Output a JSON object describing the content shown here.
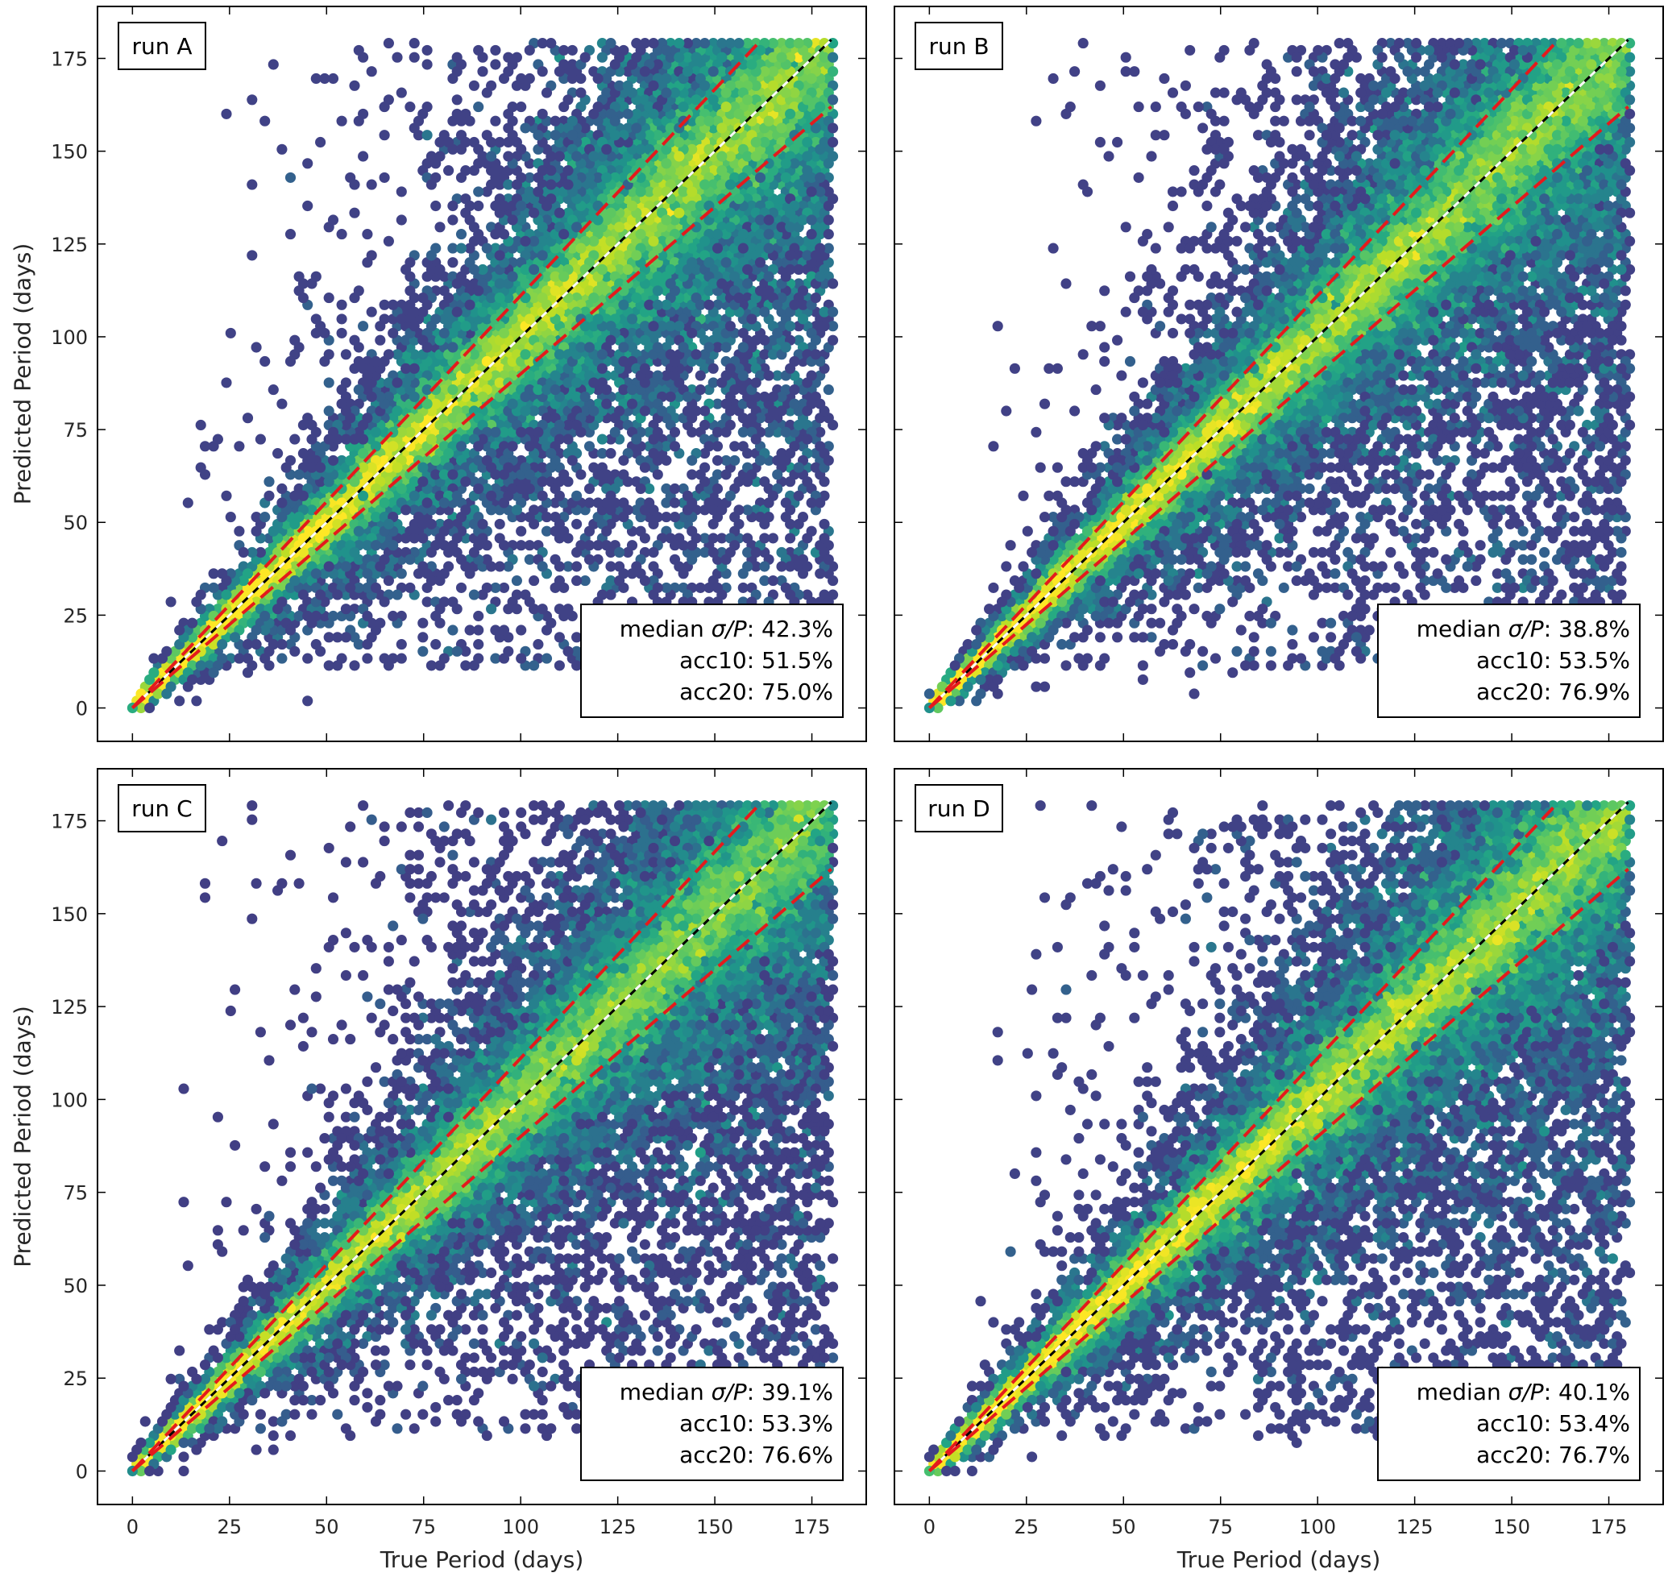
{
  "chart_data": [
    {
      "type": "hexbin",
      "panel_label": "run A",
      "xlabel": "",
      "ylabel": "Predicted Period (days)",
      "xlim": [
        -9,
        189
      ],
      "ylim": [
        -9,
        189
      ],
      "xticks": [
        0,
        25,
        50,
        75,
        100,
        125,
        150,
        175
      ],
      "yticks": [
        0,
        25,
        50,
        75,
        100,
        125,
        150,
        175
      ],
      "x_tick_labels_visible": false,
      "y_tick_labels_visible": true,
      "identity_line": {
        "x": [
          0,
          180
        ],
        "y": [
          0,
          180
        ],
        "style": "black/white dashed"
      },
      "band_lines": [
        {
          "name": "upper",
          "x": [
            0,
            162
          ],
          "y": [
            0,
            180
          ],
          "color": "#e41a1c"
        },
        {
          "name": "lower",
          "x": [
            0,
            180
          ],
          "y": [
            0,
            162
          ],
          "color": "#e41a1c"
        }
      ],
      "stats": {
        "line1_prefix": "median ",
        "line1_symbol": "σ/P",
        "line1_value": ": 42.3%",
        "line2": "acc10: 51.5%",
        "line3": "acc20: 75.0%"
      },
      "colormap": "viridis"
    },
    {
      "type": "hexbin",
      "panel_label": "run B",
      "xlabel": "",
      "ylabel": "",
      "xlim": [
        -9,
        189
      ],
      "ylim": [
        -9,
        189
      ],
      "xticks": [
        0,
        25,
        50,
        75,
        100,
        125,
        150,
        175
      ],
      "yticks": [
        0,
        25,
        50,
        75,
        100,
        125,
        150,
        175
      ],
      "x_tick_labels_visible": false,
      "y_tick_labels_visible": false,
      "identity_line": {
        "x": [
          0,
          180
        ],
        "y": [
          0,
          180
        ],
        "style": "black/white dashed"
      },
      "band_lines": [
        {
          "name": "upper",
          "x": [
            0,
            162
          ],
          "y": [
            0,
            180
          ],
          "color": "#e41a1c"
        },
        {
          "name": "lower",
          "x": [
            0,
            180
          ],
          "y": [
            0,
            162
          ],
          "color": "#e41a1c"
        }
      ],
      "stats": {
        "line1_prefix": "median ",
        "line1_symbol": "σ/P",
        "line1_value": ": 38.8%",
        "line2": "acc10: 53.5%",
        "line3": "acc20: 76.9%"
      },
      "colormap": "viridis"
    },
    {
      "type": "hexbin",
      "panel_label": "run C",
      "xlabel": "True Period (days)",
      "ylabel": "Predicted Period (days)",
      "xlim": [
        -9,
        189
      ],
      "ylim": [
        -9,
        189
      ],
      "xticks": [
        0,
        25,
        50,
        75,
        100,
        125,
        150,
        175
      ],
      "yticks": [
        0,
        25,
        50,
        75,
        100,
        125,
        150,
        175
      ],
      "x_tick_labels_visible": true,
      "y_tick_labels_visible": true,
      "identity_line": {
        "x": [
          0,
          180
        ],
        "y": [
          0,
          180
        ],
        "style": "black/white dashed"
      },
      "band_lines": [
        {
          "name": "upper",
          "x": [
            0,
            162
          ],
          "y": [
            0,
            180
          ],
          "color": "#e41a1c"
        },
        {
          "name": "lower",
          "x": [
            0,
            180
          ],
          "y": [
            0,
            162
          ],
          "color": "#e41a1c"
        }
      ],
      "stats": {
        "line1_prefix": "median ",
        "line1_symbol": "σ/P",
        "line1_value": ": 39.1%",
        "line2": "acc10: 53.3%",
        "line3": "acc20: 76.6%"
      },
      "colormap": "viridis"
    },
    {
      "type": "hexbin",
      "panel_label": "run D",
      "xlabel": "True Period (days)",
      "ylabel": "",
      "xlim": [
        -9,
        189
      ],
      "ylim": [
        -9,
        189
      ],
      "xticks": [
        0,
        25,
        50,
        75,
        100,
        125,
        150,
        175
      ],
      "yticks": [
        0,
        25,
        50,
        75,
        100,
        125,
        150,
        175
      ],
      "x_tick_labels_visible": true,
      "y_tick_labels_visible": false,
      "identity_line": {
        "x": [
          0,
          180
        ],
        "y": [
          0,
          180
        ],
        "style": "black/white dashed"
      },
      "band_lines": [
        {
          "name": "upper",
          "x": [
            0,
            162
          ],
          "y": [
            0,
            180
          ],
          "color": "#e41a1c"
        },
        {
          "name": "lower",
          "x": [
            0,
            180
          ],
          "y": [
            0,
            162
          ],
          "color": "#e41a1c"
        }
      ],
      "stats": {
        "line1_prefix": "median ",
        "line1_symbol": "σ/P",
        "line1_value": ": 40.1%",
        "line2": "acc10: 53.4%",
        "line3": "acc20: 76.7%"
      },
      "colormap": "viridis"
    }
  ]
}
